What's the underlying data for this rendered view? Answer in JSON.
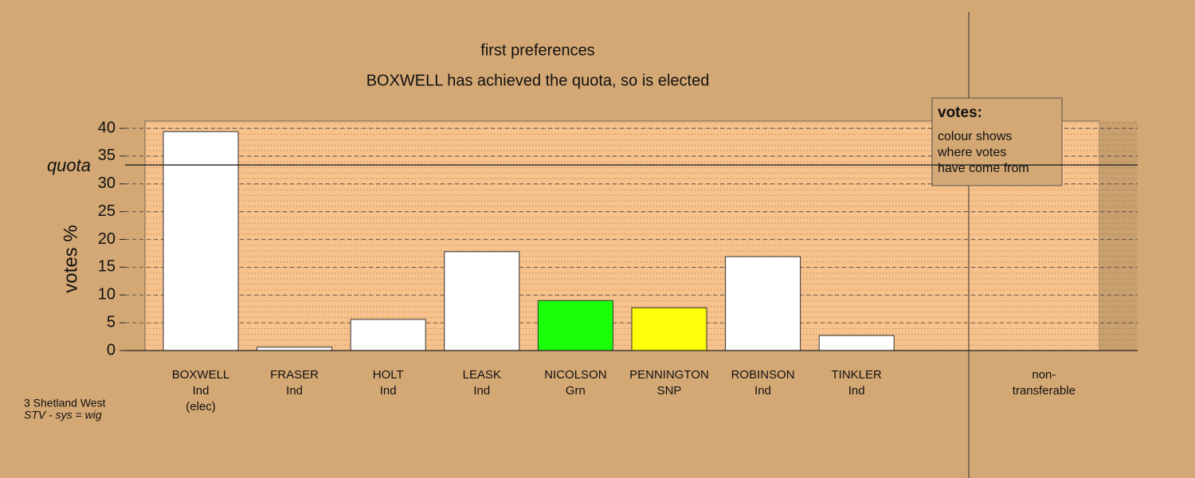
{
  "chart_data": {
    "type": "bar",
    "title": "first preferences",
    "subtitle": "BOXWELL has achieved the quota, so is elected",
    "y_label": "votes %",
    "categories": [
      [
        "BOXWELL",
        "Ind",
        "(elec)"
      ],
      [
        "FRASER",
        "Ind"
      ],
      [
        "HOLT",
        "Ind"
      ],
      [
        "LEASK",
        "Ind"
      ],
      [
        "NICOLSON",
        "Grn"
      ],
      [
        "PENNINGTON",
        "SNP"
      ],
      [
        "ROBINSON",
        "Ind"
      ],
      [
        "TINKLER",
        "Ind"
      ],
      [
        "non-",
        "transferable"
      ]
    ],
    "values": [
      39.4,
      0.6,
      5.6,
      17.8,
      9.0,
      7.7,
      16.9,
      2.7,
      0
    ],
    "colors": [
      "#ffffff",
      "#ffffff",
      "#ffffff",
      "#ffffff",
      "#1aff0a",
      "#ffff0a",
      "#ffffff",
      "#ffffff",
      "#ffffff"
    ],
    "ylim": [
      0,
      41.3
    ],
    "yticks": [
      0,
      5,
      10,
      15,
      20,
      25,
      30,
      35,
      40
    ],
    "grid": true,
    "quota": 33.4,
    "quota_label": "quota",
    "legend": {
      "title": "votes:",
      "lines": [
        "colour shows",
        "where votes",
        "have come from"
      ]
    },
    "footnote": [
      "3 Shetland West",
      "STV - sys = wig"
    ]
  }
}
